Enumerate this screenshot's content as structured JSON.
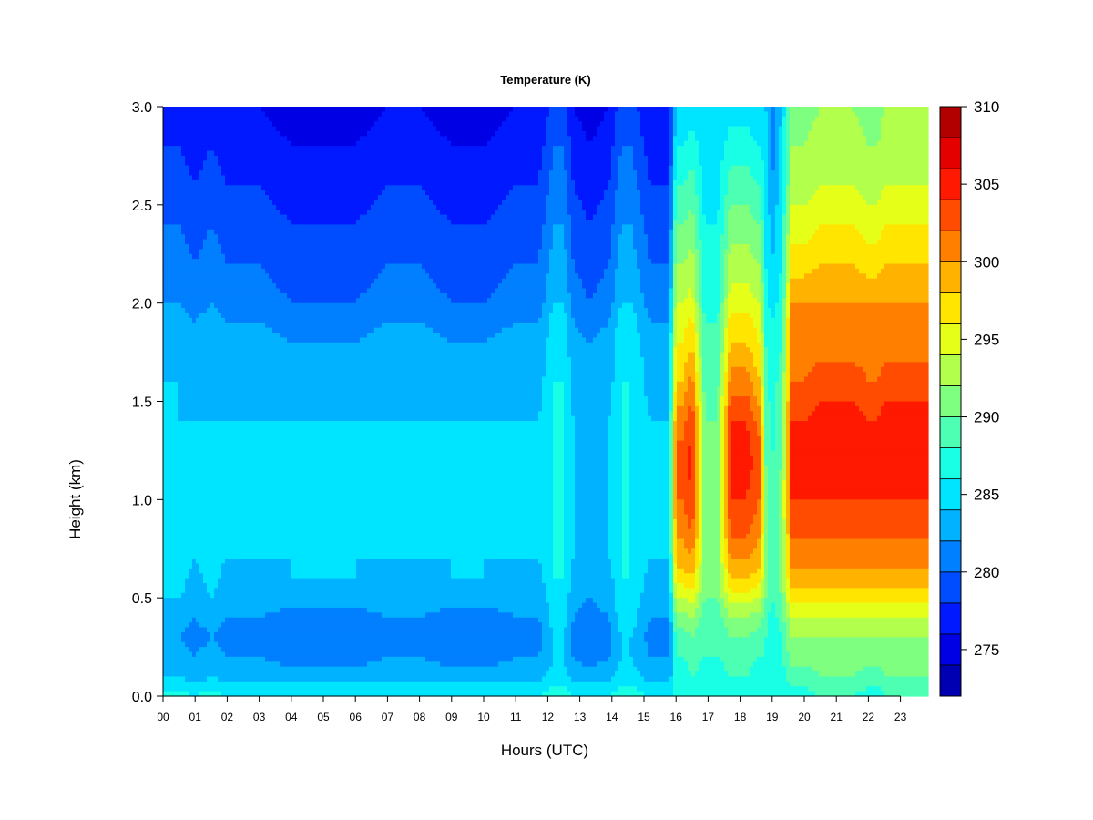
{
  "chart_data": {
    "type": "heatmap",
    "title": "Temperature (K)",
    "xlabel": "Hours (UTC)",
    "ylabel": "Height (km)",
    "xlim": [
      0,
      23.85
    ],
    "ylim": [
      0,
      3.0
    ],
    "x_ticks": [
      "00",
      "01",
      "02",
      "03",
      "04",
      "05",
      "06",
      "07",
      "08",
      "09",
      "10",
      "11",
      "12",
      "13",
      "14",
      "15",
      "16",
      "17",
      "18",
      "19",
      "20",
      "21",
      "22",
      "23"
    ],
    "y_ticks": [
      "0.0",
      "0.5",
      "1.0",
      "1.5",
      "2.0",
      "2.5",
      "3.0"
    ],
    "colorbar": {
      "range": [
        272,
        310
      ],
      "levels": [
        272,
        274,
        276,
        278,
        280,
        282,
        284,
        286,
        288,
        290,
        292,
        294,
        296,
        298,
        300,
        302,
        304,
        306,
        308,
        310
      ],
      "colors": [
        "#00007f",
        "#0000b2",
        "#0000e5",
        "#0019ff",
        "#004cff",
        "#007fff",
        "#00b2ff",
        "#00e5ff",
        "#19ffe5",
        "#4cffb2",
        "#7fff7f",
        "#b2ff4c",
        "#e5ff19",
        "#ffe500",
        "#ffb200",
        "#ff7f00",
        "#ff4c00",
        "#ff1900",
        "#e50000",
        "#b20000",
        "#7f0000"
      ],
      "tick_values": [
        275,
        280,
        285,
        290,
        295,
        300,
        305,
        310
      ],
      "tick_labels": [
        "275",
        "280",
        "285",
        "290",
        "295",
        "300",
        "305",
        "310"
      ]
    },
    "columns_x": [
      0,
      0.5,
      1,
      1.5,
      2,
      3,
      4,
      5,
      6,
      7,
      8,
      9,
      10,
      11,
      11.7,
      12.2,
      12.5,
      12.8,
      13.3,
      13.9,
      14.3,
      14.6,
      15.2,
      15.8,
      16.0,
      16.2,
      16.5,
      16.9,
      17.3,
      17.7,
      18.2,
      18.6,
      18.8,
      19.0,
      19.3,
      19.6,
      20.0,
      20.5,
      21.0,
      21.5,
      22.0,
      22.3,
      22.5,
      23.0,
      23.4,
      23.85
    ],
    "profile_heights": [
      0.0,
      0.05,
      0.1,
      0.2,
      0.3,
      0.4,
      0.5,
      0.6,
      0.7,
      0.8,
      0.9,
      1.0,
      1.2,
      1.4,
      1.6,
      1.8,
      1.9,
      2.0,
      2.2,
      2.4,
      2.6,
      2.8,
      3.0
    ],
    "profiles": {
      "night": [
        286,
        285,
        283,
        282,
        281,
        282,
        283,
        283,
        284,
        284,
        284,
        284,
        284,
        284,
        283,
        283,
        282,
        281,
        280,
        279,
        278,
        277,
        276
      ],
      "night_a": [
        287,
        285,
        284,
        283,
        282,
        283,
        284,
        285,
        285,
        285,
        285,
        285,
        285,
        284,
        284,
        283,
        283,
        282,
        281,
        280,
        279,
        278,
        277
      ],
      "night_b": [
        286,
        285,
        283,
        281,
        280,
        281,
        283,
        284,
        284,
        284,
        284,
        284,
        284,
        284,
        283,
        282,
        281,
        280,
        279,
        278,
        277,
        276,
        275
      ],
      "warm_night": [
        287,
        286,
        285,
        284,
        284,
        285,
        285,
        286,
        286,
        286,
        286,
        286,
        286,
        286,
        286,
        285,
        285,
        284,
        283,
        282,
        281,
        280,
        279
      ],
      "cool_night": [
        286,
        285,
        283,
        281,
        280,
        281,
        282,
        283,
        283,
        283,
        283,
        283,
        283,
        283,
        283,
        282,
        281,
        280,
        279,
        278,
        277,
        276,
        275
      ],
      "day_a": [
        286,
        287,
        287,
        288,
        289,
        291,
        294,
        297,
        299,
        300,
        301,
        302,
        303,
        301,
        298,
        296,
        295,
        294,
        292,
        290,
        288,
        286,
        284
      ],
      "day_b": [
        286,
        287,
        288,
        289,
        290,
        292,
        295,
        298,
        300,
        302,
        303,
        304,
        305,
        304,
        301,
        298,
        297,
        295,
        293,
        291,
        289,
        287,
        285
      ],
      "day_c": [
        287,
        288,
        289,
        291,
        292,
        294,
        297,
        299,
        301,
        302,
        303,
        304,
        305,
        304,
        302,
        301,
        301,
        300,
        297,
        295,
        293,
        292,
        291
      ],
      "day_d": [
        288,
        289,
        290,
        291,
        292,
        294,
        297,
        299,
        301,
        302,
        303,
        304,
        306,
        305,
        303,
        301,
        301,
        300,
        298,
        296,
        294,
        293,
        292
      ],
      "plume": [
        286,
        287,
        287,
        288,
        288,
        289,
        290,
        291,
        291,
        291,
        291,
        291,
        290,
        290,
        289,
        288,
        288,
        287,
        286,
        286,
        285,
        285,
        284
      ],
      "plume_cold": [
        286,
        286,
        286,
        286,
        287,
        287,
        288,
        288,
        288,
        288,
        288,
        288,
        288,
        287,
        287,
        286,
        286,
        285,
        284,
        283,
        282,
        281,
        281
      ]
    },
    "columns_profile": [
      "night_a",
      "night_a",
      "night",
      "night_a",
      "night",
      "night",
      "night_b",
      "night_b",
      "night_b",
      "night",
      "night",
      "night_b",
      "night_b",
      "night",
      "night",
      "warm_night",
      "warm_night",
      "night",
      "cool_night",
      "night",
      "warm_night",
      "warm_night",
      "night",
      "night",
      "day_a",
      "day_a",
      "day_b",
      "plume",
      "plume",
      "day_b",
      "day_b",
      "day_a",
      "plume",
      "plume_cold",
      "plume",
      "day_c",
      "day_c",
      "day_d",
      "day_d",
      "day_d",
      "day_c",
      "day_c",
      "day_d",
      "day_d",
      "day_d",
      "day_d"
    ]
  }
}
